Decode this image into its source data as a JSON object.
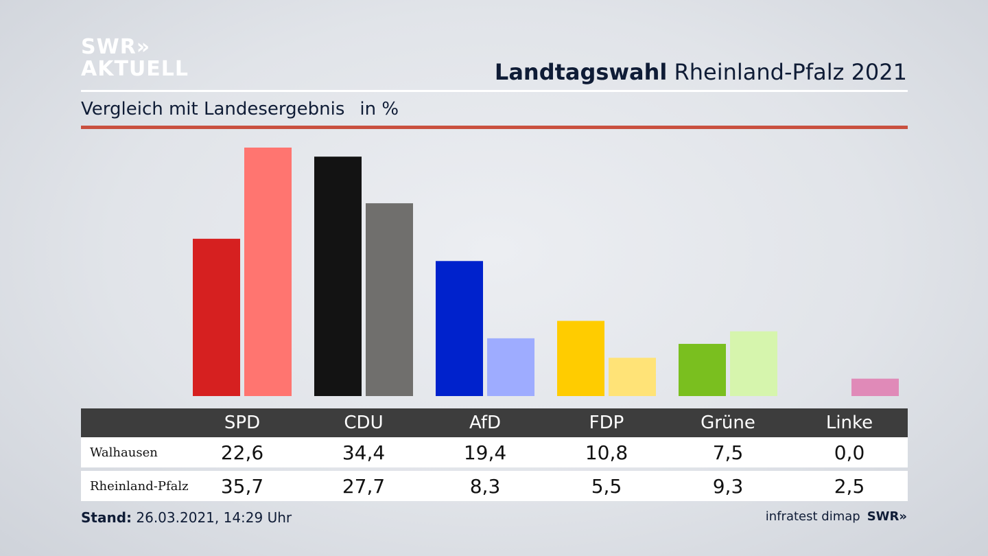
{
  "logo": {
    "line1": "SWR»",
    "line2": "AKTUELL"
  },
  "header": {
    "title_bold": "Landtagswahl",
    "title_rest": "Rheinland-Pfalz 2021"
  },
  "subtitle": {
    "text": "Vergleich mit Landesergebnis",
    "unit": "in %"
  },
  "footer": {
    "stand_label": "Stand:",
    "stand_value": "26.03.2021, 14:29 Uhr",
    "source": "infratest dimap",
    "brand": "SWR»"
  },
  "chart_data": {
    "type": "bar",
    "title": "Landtagswahl Rheinland-Pfalz 2021",
    "subtitle": "Vergleich mit Landesergebnis",
    "unit": "in %",
    "categories": [
      "SPD",
      "CDU",
      "AfD",
      "FDP",
      "Grüne",
      "Linke"
    ],
    "series": [
      {
        "name": "Walhausen",
        "values": [
          22.6,
          34.4,
          19.4,
          10.8,
          7.5,
          0.0
        ],
        "display": [
          "22,6",
          "34,4",
          "19,4",
          "10,8",
          "7,5",
          "0,0"
        ],
        "colors": [
          "#d62020",
          "#131313",
          "#0022cc",
          "#ffcc00",
          "#7abf1f",
          "#d985b8"
        ]
      },
      {
        "name": "Rheinland-Pfalz",
        "values": [
          35.7,
          27.7,
          8.3,
          5.5,
          9.3,
          2.5
        ],
        "display": [
          "35,7",
          "27,7",
          "8,3",
          "5,5",
          "9,3",
          "2,5"
        ],
        "colors": [
          "#ff7570",
          "#706f6d",
          "#9eacff",
          "#ffe377",
          "#d6f5ad",
          "#e08ab8"
        ]
      }
    ],
    "ylim": [
      0,
      35.7
    ],
    "grid": false,
    "legend": "table-below"
  }
}
